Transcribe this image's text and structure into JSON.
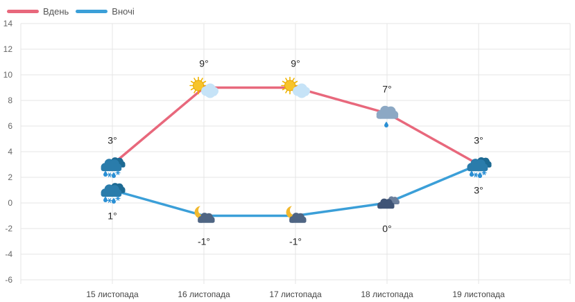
{
  "chart_data": {
    "type": "line",
    "title": "",
    "xlabel": "",
    "ylabel": "",
    "categories": [
      "15 листопада",
      "16 листопада",
      "17 листопада",
      "18 листопада",
      "19 листопада"
    ],
    "ylim": [
      -6,
      14
    ],
    "yticks": [
      14,
      12,
      10,
      8,
      6,
      4,
      2,
      0,
      -2,
      -4,
      -6
    ],
    "grid": true,
    "legend_position": "top-left",
    "series": [
      {
        "name": "Вдень",
        "color": "#e8687c",
        "values": [
          3,
          9,
          9,
          7,
          3
        ],
        "labels": [
          "3°",
          "9°",
          "9°",
          "7°",
          "3°"
        ],
        "icons": [
          "heavy-rain-snow-icon",
          "sun-cloud-icon",
          "sun-cloud-icon",
          "cloud-rain-icon",
          "heavy-rain-snow-icon"
        ]
      },
      {
        "name": "Вночі",
        "color": "#3b9fd8",
        "values": [
          1,
          -1,
          -1,
          0,
          3
        ],
        "labels": [
          "1°",
          "-1°",
          "-1°",
          "0°",
          "3°"
        ],
        "icons": [
          "heavy-rain-snow-icon",
          "moon-cloud-icon",
          "moon-cloud-icon",
          "dark-clouds-icon",
          "heavy-rain-snow-icon"
        ]
      }
    ]
  }
}
